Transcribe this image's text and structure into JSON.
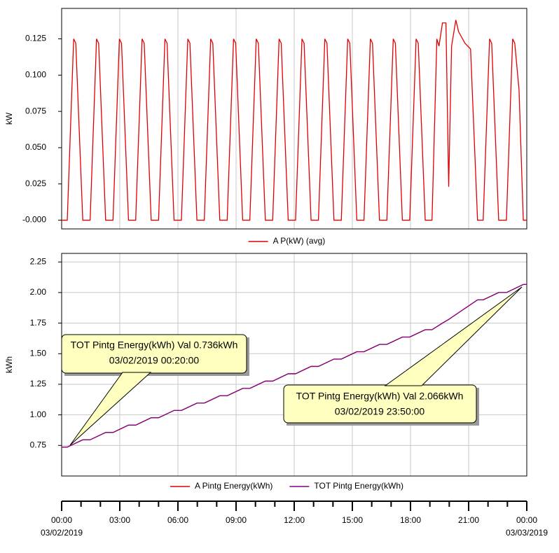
{
  "chart_data": [
    {
      "type": "line",
      "y_label": "kW",
      "xlim": [
        0,
        24
      ],
      "ylim": [
        -0.006,
        0.146
      ],
      "yticks": [
        {
          "value": 0,
          "label": "-0.000"
        },
        0.025,
        {
          "value": 0.05,
          "label": "0.050"
        },
        0.075,
        {
          "value": 0.1,
          "label": "0.100"
        },
        0.125
      ],
      "grid": "x",
      "legend": "bottom",
      "series": [
        {
          "name": "A P(kW) (avg)",
          "color": "#e00000",
          "x": [
            0,
            0.29,
            0.62,
            0.73,
            1.09,
            1.47,
            1.8,
            1.91,
            2.27,
            2.65,
            2.98,
            3.09,
            3.45,
            3.82,
            4.15,
            4.26,
            4.62,
            5.0,
            5.33,
            5.44,
            5.8,
            6.18,
            6.51,
            6.62,
            6.98,
            7.36,
            7.69,
            7.8,
            8.16,
            8.54,
            8.87,
            8.98,
            9.34,
            9.71,
            10.04,
            10.15,
            10.51,
            10.89,
            11.22,
            11.33,
            11.69,
            12.07,
            12.4,
            12.51,
            12.87,
            13.25,
            13.58,
            13.69,
            14.05,
            14.43,
            14.76,
            14.87,
            15.23,
            15.6,
            15.93,
            16.04,
            16.4,
            16.78,
            17.11,
            17.22,
            17.58,
            17.96,
            18.29,
            18.4,
            18.76,
            19.11,
            19.36,
            19.47,
            19.65,
            19.83,
            19.97,
            20.12,
            20.34,
            20.48,
            20.81,
            21.1,
            21.46,
            21.75,
            22.08,
            22.19,
            22.55,
            22.95,
            23.27,
            23.38,
            23.6,
            23.82,
            24
          ],
          "values": [
            0,
            0,
            0.125,
            0.122,
            0,
            0,
            0.125,
            0.122,
            0,
            0,
            0.125,
            0.122,
            0,
            0,
            0.125,
            0.122,
            0,
            0,
            0.125,
            0.122,
            0,
            0,
            0.125,
            0.122,
            0,
            0,
            0.125,
            0.122,
            0,
            0,
            0.125,
            0.122,
            0,
            0,
            0.125,
            0.122,
            0,
            0,
            0.125,
            0.122,
            0,
            0,
            0.125,
            0.122,
            0,
            0,
            0.125,
            0.122,
            0,
            0,
            0.125,
            0.122,
            0,
            0,
            0.125,
            0.122,
            0,
            0,
            0.125,
            0.122,
            0,
            0,
            0.125,
            0.122,
            0,
            0,
            0.125,
            0.12,
            0.136,
            0.136,
            0.023,
            0.12,
            0.138,
            0.13,
            0.122,
            0.118,
            0,
            0,
            0.125,
            0.122,
            0,
            0,
            0.125,
            0.122,
            0.09,
            0,
            0
          ]
        }
      ]
    },
    {
      "type": "line",
      "y_label": "kWh",
      "xlim": [
        0,
        24
      ],
      "ylim": [
        0.5,
        2.32
      ],
      "yticks": [
        0.75,
        {
          "value": 1,
          "label": "1.00"
        },
        1.25,
        {
          "value": 1.5,
          "label": "1.50"
        },
        1.75,
        {
          "value": 2,
          "label": "2.00"
        },
        2.25
      ],
      "xticks": [
        {
          "value": 0,
          "label": "00:00"
        },
        {
          "value": 3,
          "label": "03:00"
        },
        {
          "value": 6,
          "label": "06:00"
        },
        {
          "value": 9,
          "label": "09:00"
        },
        {
          "value": 12,
          "label": "12:00"
        },
        {
          "value": 15,
          "label": "15:00"
        },
        {
          "value": 18,
          "label": "18:00"
        },
        {
          "value": 21,
          "label": "21:00"
        },
        {
          "value": 24,
          "label": "00:00"
        }
      ],
      "xminorticks": [
        0,
        1,
        2,
        3,
        4,
        5,
        6,
        7,
        8,
        9,
        10,
        11,
        12,
        13,
        14,
        15,
        16,
        17,
        18,
        19,
        20,
        21,
        22,
        23,
        24
      ],
      "x_date_labels": [
        "03/02/2019",
        "03/03/2019"
      ],
      "grid": "both",
      "legend": "bottom",
      "series": [
        {
          "name": "A Pintg Energy(kWh)",
          "color": "#e00000",
          "x": [
            0,
            0.29,
            1.09,
            1.47,
            2.27,
            2.65,
            3.45,
            3.82,
            4.62,
            5.0,
            5.8,
            6.18,
            6.98,
            7.36,
            8.16,
            8.54,
            9.34,
            9.71,
            10.51,
            10.89,
            11.69,
            12.07,
            12.87,
            13.25,
            14.05,
            14.43,
            15.23,
            15.6,
            16.4,
            16.78,
            17.58,
            17.96,
            18.76,
            19.11,
            19.65,
            19.97,
            20.34,
            21.46,
            21.75,
            22.55,
            22.95,
            23.82,
            24
          ],
          "values": [
            0.736,
            0.736,
            0.796,
            0.796,
            0.856,
            0.856,
            0.916,
            0.916,
            0.976,
            0.976,
            1.036,
            1.036,
            1.096,
            1.096,
            1.156,
            1.156,
            1.216,
            1.216,
            1.276,
            1.276,
            1.336,
            1.336,
            1.396,
            1.396,
            1.456,
            1.456,
            1.516,
            1.516,
            1.576,
            1.576,
            1.636,
            1.636,
            1.696,
            1.696,
            1.75,
            1.78,
            1.82,
            1.94,
            1.94,
            2.0,
            2.0,
            2.066,
            2.066
          ]
        },
        {
          "name": "TOT Pintg Energy(kWh)",
          "color": "#800080",
          "x": [
            0,
            0.29,
            1.09,
            1.47,
            2.27,
            2.65,
            3.45,
            3.82,
            4.62,
            5.0,
            5.8,
            6.18,
            6.98,
            7.36,
            8.16,
            8.54,
            9.34,
            9.71,
            10.51,
            10.89,
            11.69,
            12.07,
            12.87,
            13.25,
            14.05,
            14.43,
            15.23,
            15.6,
            16.4,
            16.78,
            17.58,
            17.96,
            18.76,
            19.11,
            19.65,
            19.97,
            20.34,
            21.46,
            21.75,
            22.55,
            22.95,
            23.82,
            24
          ],
          "values": [
            0.736,
            0.736,
            0.796,
            0.796,
            0.856,
            0.856,
            0.916,
            0.916,
            0.976,
            0.976,
            1.036,
            1.036,
            1.096,
            1.096,
            1.156,
            1.156,
            1.216,
            1.216,
            1.276,
            1.276,
            1.336,
            1.336,
            1.396,
            1.396,
            1.456,
            1.456,
            1.516,
            1.516,
            1.576,
            1.576,
            1.636,
            1.636,
            1.696,
            1.696,
            1.75,
            1.78,
            1.82,
            1.94,
            1.94,
            2.0,
            2.0,
            2.066,
            2.066
          ]
        }
      ],
      "annotations": [
        {
          "lines": [
            "TOT Pintg Energy(kWh) Val 0.736kWh",
            "03/02/2019 00:20:00"
          ]
        },
        {
          "lines": [
            "TOT Pintg Energy(kWh) Val 2.066kWh",
            "03/02/2019 23:50:00"
          ]
        }
      ]
    }
  ]
}
